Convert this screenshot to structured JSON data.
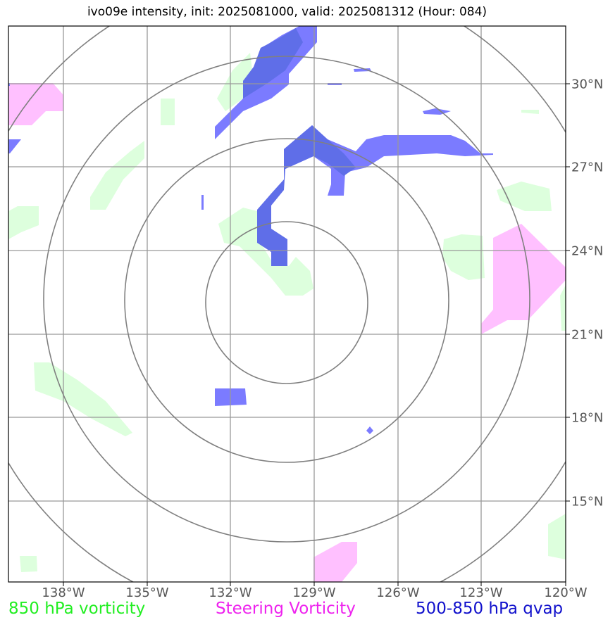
{
  "title": "ivo09e intensity, init: 2025081000, valid: 2025081312 (Hour: 084)",
  "map": {
    "lon_labels": [
      "138°W",
      "135°W",
      "132°W",
      "129°W",
      "126°W",
      "123°W",
      "120°W"
    ],
    "lat_labels": [
      "30°N",
      "27°N",
      "24°N",
      "21°N",
      "18°N",
      "15°N"
    ],
    "grid_color": "#999999",
    "ring_color": "#808080",
    "fill_colors": {
      "vorticity_850": "#ddffdd",
      "steering_vorticity": "#ffc0ff",
      "qvap_500_850": "#6f6fff"
    }
  },
  "legend": {
    "vorticity_850": {
      "label": "850 hPa vorticity",
      "color": "#22ee22"
    },
    "steering_vorticity": {
      "label": "Steering Vorticity",
      "color": "#ee22ee"
    },
    "qvap_500_850": {
      "label": "500-850 hPa qvap",
      "color": "#1111cc"
    }
  }
}
